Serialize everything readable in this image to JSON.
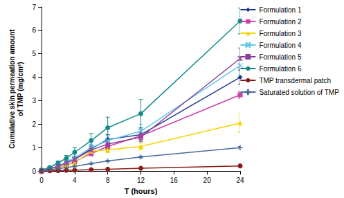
{
  "chart_data": {
    "type": "line",
    "x_label": "T (hours)",
    "y_label": "Cumulative skin permeation amount\nof TMP (mg/cm²)",
    "x": [
      0,
      1,
      2,
      3,
      4,
      6,
      8,
      12,
      24
    ],
    "xlim": [
      0,
      24
    ],
    "xticks": [
      0,
      4,
      8,
      12,
      16,
      20,
      24
    ],
    "ylim": [
      0,
      7
    ],
    "yticks": [
      0,
      1,
      2,
      3,
      4,
      5,
      6,
      7
    ],
    "grid": false,
    "legend": "right",
    "series": [
      {
        "name": "Formulation 1",
        "color": "#1f3a8a",
        "marker": "diamond",
        "values": [
          0,
          0.1,
          0.2,
          0.35,
          0.5,
          0.95,
          1.35,
          1.55,
          4.0
        ],
        "errors": [
          0,
          0.03,
          0.05,
          0.08,
          0.1,
          0.15,
          0.2,
          0.25,
          0.3
        ]
      },
      {
        "name": "Formulation 2",
        "color": "#cc3fa8",
        "marker": "square",
        "values": [
          0,
          0.05,
          0.15,
          0.25,
          0.4,
          0.75,
          1.05,
          1.5,
          3.25
        ],
        "errors": [
          0,
          0.02,
          0.03,
          0.05,
          0.08,
          0.1,
          0.12,
          0.15,
          0.15
        ]
      },
      {
        "name": "Formulation 3",
        "color": "#f2d500",
        "marker": "triangle",
        "values": [
          0,
          0.05,
          0.15,
          0.25,
          0.35,
          0.85,
          0.9,
          1.05,
          2.05
        ],
        "errors": [
          0,
          0.02,
          0.03,
          0.05,
          0.08,
          0.1,
          0.12,
          0.15,
          0.4
        ]
      },
      {
        "name": "Formulation 4",
        "color": "#5fc8e8",
        "marker": "x",
        "values": [
          0,
          0.1,
          0.2,
          0.4,
          0.55,
          1.0,
          1.3,
          1.7,
          4.5
        ],
        "errors": [
          0,
          0.03,
          0.05,
          0.08,
          0.1,
          0.15,
          0.2,
          0.3,
          0.4
        ]
      },
      {
        "name": "Formulation 5",
        "color": "#8a3f98",
        "marker": "asterisk",
        "values": [
          0,
          0.1,
          0.2,
          0.35,
          0.5,
          0.9,
          1.15,
          1.45,
          4.8
        ],
        "errors": [
          0,
          0.03,
          0.05,
          0.08,
          0.1,
          0.15,
          0.2,
          0.2,
          0.45
        ]
      },
      {
        "name": "Formulation 6",
        "color": "#138a8a",
        "marker": "circle",
        "values": [
          0.05,
          0.15,
          0.35,
          0.55,
          0.8,
          1.3,
          1.85,
          2.45,
          6.4
        ],
        "errors": [
          0.02,
          0.05,
          0.08,
          0.12,
          0.2,
          0.3,
          0.45,
          0.6,
          0.55
        ]
      },
      {
        "name": "TMP transdermal patch",
        "color": "#8b1a1a",
        "marker": "circle",
        "values": [
          0,
          0.01,
          0.02,
          0.03,
          0.04,
          0.06,
          0.08,
          0.12,
          0.22
        ],
        "errors": [
          0,
          0,
          0,
          0,
          0,
          0.01,
          0.01,
          0.01,
          0.02
        ]
      },
      {
        "name": "Saturated solution of TMP",
        "color": "#4a6c9b",
        "marker": "plus",
        "values": [
          0,
          0.05,
          0.1,
          0.15,
          0.2,
          0.32,
          0.43,
          0.6,
          1.0
        ],
        "errors": [
          0,
          0.01,
          0.01,
          0.02,
          0.02,
          0.03,
          0.03,
          0.04,
          0.05
        ]
      }
    ]
  }
}
